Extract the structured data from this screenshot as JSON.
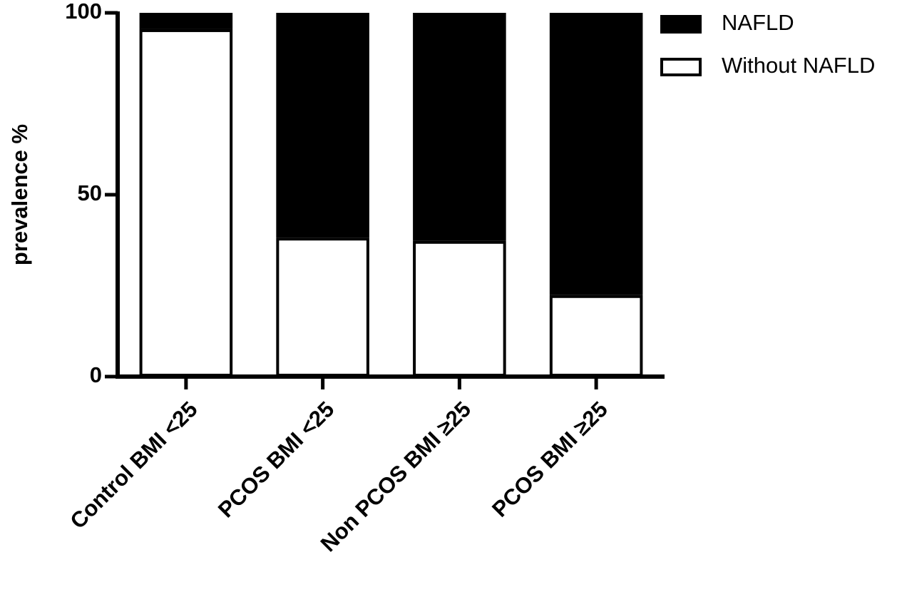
{
  "chart_data": {
    "type": "stacked_bar",
    "y_label": "prevalence %",
    "categories": [
      "Control BMI <25",
      "PCOS BMI <25",
      "Non PCOS BMI ≥25",
      "PCOS BMI ≥25"
    ],
    "series": [
      {
        "name": "Without NAFLD",
        "color": "#ffffff",
        "values": [
          95.5,
          38.2,
          37.3,
          22.4
        ]
      },
      {
        "name": "NAFLD",
        "color": "#000000",
        "values": [
          4.5,
          61.8,
          62.7,
          77.6
        ]
      }
    ],
    "ylim": [
      0,
      100
    ],
    "yticks": [
      0,
      50,
      100
    ],
    "grid": false,
    "legend": "top-right"
  }
}
